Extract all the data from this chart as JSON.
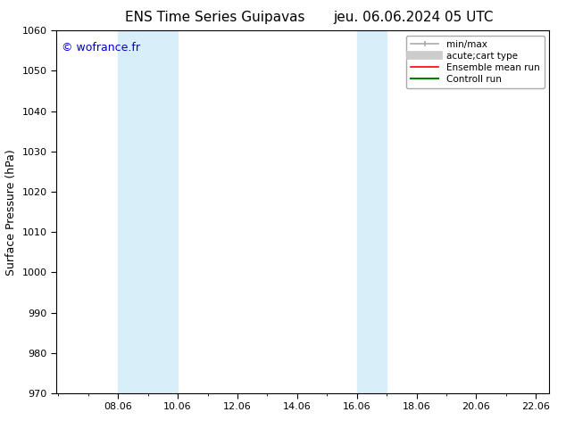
{
  "title_left": "ENS Time Series Guipavas",
  "title_right": "jeu. 06.06.2024 05 UTC",
  "ylabel": "Surface Pressure (hPa)",
  "ylim": [
    970,
    1060
  ],
  "yticks": [
    970,
    980,
    990,
    1000,
    1010,
    1020,
    1030,
    1040,
    1050,
    1060
  ],
  "xlim": [
    6.0,
    22.5
  ],
  "xticks": [
    8.06,
    10.06,
    12.06,
    14.06,
    16.06,
    18.06,
    20.06,
    22.06
  ],
  "xtick_labels": [
    "08.06",
    "10.06",
    "12.06",
    "14.06",
    "16.06",
    "18.06",
    "20.06",
    "22.06"
  ],
  "watermark": "© wofrance.fr",
  "watermark_color": "#0000cc",
  "background_color": "#ffffff",
  "plot_bg_color": "#ffffff",
  "shaded_regions": [
    {
      "xmin": 8.06,
      "xmax": 10.06,
      "color": "#d8eef8"
    },
    {
      "xmin": 16.06,
      "xmax": 17.06,
      "color": "#d8eef8"
    }
  ],
  "legend_entries": [
    {
      "label": "min/max",
      "color": "#aaaaaa",
      "linestyle": "-",
      "linewidth": 1.2
    },
    {
      "label": "acute;cart type",
      "color": "#cccccc",
      "linestyle": "-",
      "linewidth": 6
    },
    {
      "label": "Ensemble mean run",
      "color": "#ff0000",
      "linestyle": "-",
      "linewidth": 1.2
    },
    {
      "label": "Controll run",
      "color": "#008000",
      "linestyle": "-",
      "linewidth": 1.5
    }
  ],
  "title_fontsize": 11,
  "tick_fontsize": 8,
  "ylabel_fontsize": 9,
  "watermark_fontsize": 9,
  "legend_fontsize": 7.5
}
